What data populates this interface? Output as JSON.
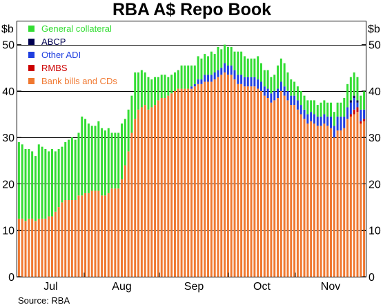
{
  "chart_data": {
    "type": "bar",
    "stacked": true,
    "title": "RBA A$ Repo Book",
    "y_unit": "$b",
    "ylim": [
      0,
      55
    ],
    "yticks": [
      0,
      10,
      20,
      30,
      40,
      50
    ],
    "month_labels": [
      "Jul",
      "Aug",
      "Sep",
      "Oct",
      "Nov"
    ],
    "grid": true,
    "legend_position": "top-left",
    "source": "Source: RBA",
    "series": [
      {
        "key": "bb",
        "name": "Bank bills and CDs",
        "color": "#F07830"
      },
      {
        "key": "rmbs",
        "name": "RMBS",
        "color": "#CC0000"
      },
      {
        "key": "adi",
        "name": "Other ADI",
        "color": "#1F3FE0"
      },
      {
        "key": "abcp",
        "name": "ABCP",
        "color": "#000050"
      },
      {
        "key": "gc",
        "name": "General collateral",
        "color": "#33DD33"
      }
    ],
    "legend_order": [
      "gc",
      "abcp",
      "adi",
      "rmbs",
      "bb"
    ],
    "values": {
      "bb": [
        12.5,
        12.5,
        12,
        12.5,
        12.5,
        12,
        12.5,
        12.5,
        12.5,
        13,
        13,
        14,
        15,
        16,
        16.5,
        16.5,
        16.5,
        16.5,
        17.5,
        17.5,
        18,
        18,
        18.5,
        18.5,
        18.5,
        17.5,
        17.5,
        18,
        19,
        19,
        19,
        21,
        24,
        27,
        31,
        34,
        36,
        36.5,
        37,
        36,
        36.5,
        37,
        38,
        38.5,
        38.5,
        39,
        39.5,
        40,
        40.5,
        40.5,
        40.5,
        40.5,
        40.5,
        41,
        41.5,
        41.5,
        42,
        42,
        42,
        42.5,
        43,
        43.5,
        44,
        43.5,
        43.5,
        42.5,
        41.5,
        41.5,
        41,
        41,
        41,
        41,
        40.5,
        40,
        39,
        38.5,
        37.5,
        38,
        38.5,
        40,
        39,
        38,
        37,
        37,
        36,
        35,
        34,
        33,
        33.5,
        33,
        32.5,
        32.5,
        33,
        32.5,
        32,
        30,
        31.5,
        31.5,
        32,
        34,
        34.5,
        35,
        35.5,
        33,
        33.5
      ],
      "rmbs": [
        0,
        0,
        0,
        0,
        0,
        0,
        0,
        0,
        0,
        0,
        0,
        0,
        0,
        0,
        0,
        0,
        0,
        0,
        0,
        0,
        0,
        0,
        0,
        0,
        0,
        0,
        0,
        0,
        0,
        0,
        0,
        0,
        0,
        0,
        0,
        0,
        0,
        0,
        0,
        0,
        0,
        0,
        0,
        0,
        0,
        0,
        0,
        0,
        0,
        0,
        0,
        0,
        0,
        0,
        0,
        0,
        0,
        0,
        0,
        0,
        0,
        0,
        0,
        0,
        0,
        0,
        0,
        0,
        0,
        0,
        0,
        0,
        0,
        0,
        0,
        0,
        0,
        0,
        0,
        0,
        0,
        0,
        0,
        0,
        0,
        0,
        0,
        0,
        0,
        0,
        0,
        0,
        0,
        0,
        0,
        0,
        0,
        0,
        0,
        0,
        0.5,
        1,
        1,
        0.5,
        0.5
      ],
      "adi": [
        0,
        0,
        0,
        0,
        0,
        0,
        0,
        0,
        0,
        0,
        0,
        0,
        0,
        0,
        0,
        0,
        0,
        0,
        0,
        0,
        0,
        0,
        0,
        0,
        0,
        0,
        0,
        0,
        0,
        0,
        0,
        0,
        0,
        0,
        0,
        0,
        0,
        0,
        0,
        0,
        0,
        0,
        0,
        0,
        0,
        0,
        0,
        0,
        0,
        0,
        0,
        0,
        0.5,
        0.5,
        1,
        1,
        1.5,
        1.5,
        1.5,
        1.5,
        1.5,
        1.5,
        2,
        2,
        2,
        2,
        2,
        2,
        2,
        2,
        2,
        2,
        2,
        2,
        2,
        2,
        2,
        2,
        2,
        2,
        2,
        2,
        2,
        2,
        2,
        2,
        2,
        2,
        2,
        2,
        2,
        2,
        2,
        2,
        2.5,
        2.5,
        3,
        3,
        2.5,
        2.5,
        2.5,
        2.5,
        1,
        2.5,
        2
      ],
      "abcp": [
        0,
        0,
        0,
        0,
        0,
        0,
        0,
        0,
        0,
        0,
        0,
        0,
        0,
        0,
        0,
        0,
        0,
        0,
        0,
        0,
        0,
        0,
        0,
        0,
        0,
        0,
        0,
        0,
        0,
        0,
        0,
        0,
        0,
        0,
        0,
        0,
        0,
        0,
        0,
        0,
        0,
        0,
        0,
        0,
        0,
        0,
        0,
        0,
        0,
        0,
        0,
        0,
        0,
        0,
        0,
        0,
        0,
        0,
        0,
        0,
        0,
        0,
        0,
        0,
        0,
        0,
        0,
        0,
        0,
        0,
        0,
        0,
        0,
        0,
        0,
        0,
        0,
        0,
        0,
        0,
        0,
        0,
        0,
        0,
        0,
        0,
        0,
        0,
        0,
        0,
        0,
        0,
        0,
        0,
        0,
        0,
        0,
        0,
        0,
        0,
        0.5,
        0.5,
        0.5,
        0,
        0
      ],
      "gc": [
        16.5,
        16,
        15.5,
        15,
        14.5,
        14,
        16,
        15.5,
        15,
        14,
        14.5,
        13,
        12.5,
        12,
        12.5,
        13,
        13.5,
        13,
        13.5,
        17,
        16,
        15,
        14,
        14,
        15,
        14.5,
        14,
        14,
        12,
        12,
        12,
        12,
        10,
        9,
        8,
        10,
        8,
        8,
        7,
        7,
        6,
        6,
        5,
        5,
        5,
        4,
        4,
        4,
        4,
        5,
        5,
        5,
        4.5,
        4,
        5,
        4.5,
        4.5,
        4,
        5,
        4,
        5,
        4,
        4,
        4,
        4,
        4,
        5,
        5,
        4.5,
        4,
        4,
        4,
        5,
        4,
        3.5,
        4,
        3.5,
        3.5,
        5,
        5,
        5,
        4,
        3.5,
        3,
        3,
        3,
        3,
        3,
        2.5,
        3,
        2.5,
        3,
        3,
        3,
        3,
        3,
        3,
        3,
        4,
        5,
        5,
        5,
        5,
        3,
        4
      ]
    }
  }
}
